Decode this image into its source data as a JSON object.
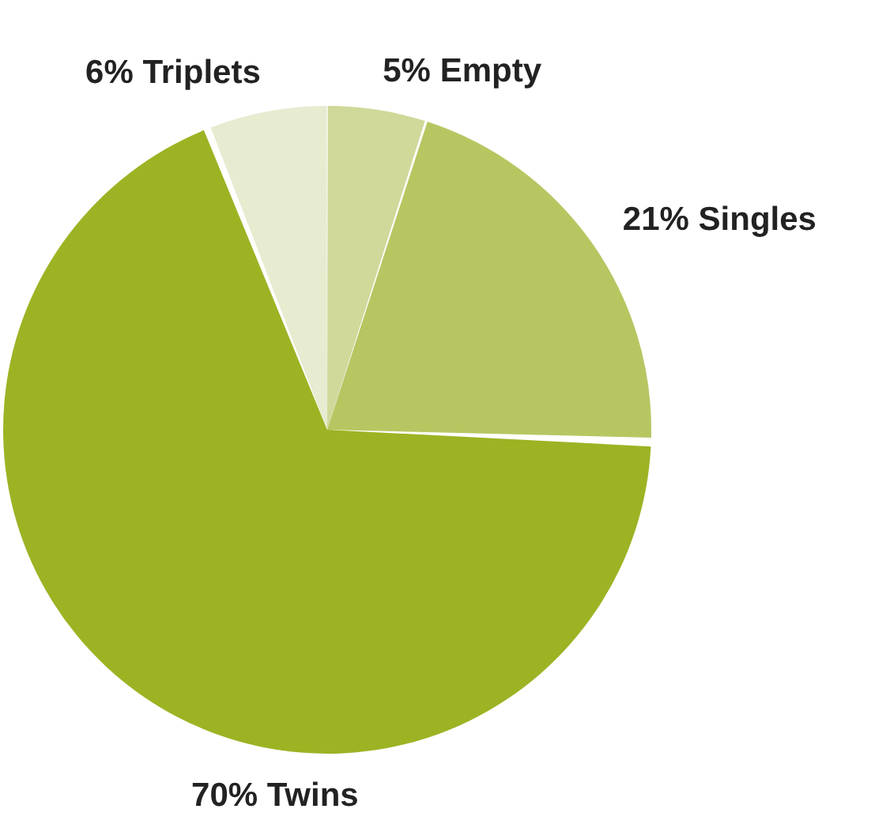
{
  "chart_data": {
    "type": "pie",
    "categories": [
      "Empty",
      "Singles",
      "Twins",
      "Triplets"
    ],
    "values": [
      5,
      21,
      70,
      6
    ],
    "colors": [
      "#d0d99a",
      "#b8c662",
      "#9db324",
      "#e7ebd0"
    ],
    "value_labels": [
      "5%",
      "21%",
      "70%",
      "6%"
    ]
  }
}
